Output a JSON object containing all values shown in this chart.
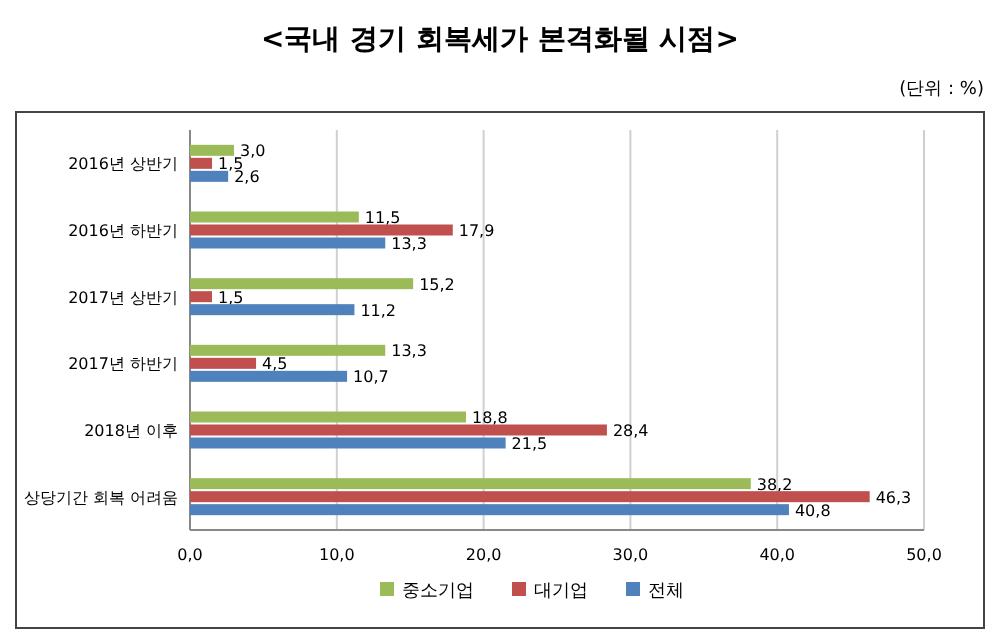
{
  "chart_data": {
    "type": "bar",
    "orientation": "horizontal",
    "title": "<국내 경기 회복세가 본격화될 시점>",
    "annotations": [
      "(단위 : %)"
    ],
    "categories": [
      "2016년 상반기",
      "2016년 하반기",
      "2017년 상반기",
      "2017년 하반기",
      "2018년 이후",
      "상당기간 회복 어려움"
    ],
    "series": [
      {
        "name": "중소기업",
        "color": "#9bbb59",
        "values": [
          3.0,
          11.5,
          15.2,
          13.3,
          18.8,
          38.2
        ],
        "value_labels": [
          "3,0",
          "11,5",
          "15,2",
          "13,3",
          "18,8",
          "38,2"
        ]
      },
      {
        "name": "대기업",
        "color": "#c0504d",
        "values": [
          1.5,
          17.9,
          1.5,
          4.5,
          28.4,
          46.3
        ],
        "value_labels": [
          "1,5",
          "17,9",
          "1,5",
          "4,5",
          "28,4",
          "46,3"
        ]
      },
      {
        "name": "전체",
        "color": "#4f81bd",
        "values": [
          2.6,
          13.3,
          11.2,
          10.7,
          21.5,
          40.8
        ],
        "value_labels": [
          "2,6",
          "13,3",
          "11,2",
          "10,7",
          "21,5",
          "40,8"
        ]
      }
    ],
    "xlim": [
      0,
      50
    ],
    "xticks": [
      {
        "value": 0,
        "label": "0,0"
      },
      {
        "value": 10,
        "label": "10,0"
      },
      {
        "value": 20,
        "label": "20,0"
      },
      {
        "value": 30,
        "label": "30,0"
      },
      {
        "value": 40,
        "label": "40,0"
      },
      {
        "value": 50,
        "label": "50,0"
      }
    ],
    "grid": "x",
    "legend": "bottom"
  }
}
